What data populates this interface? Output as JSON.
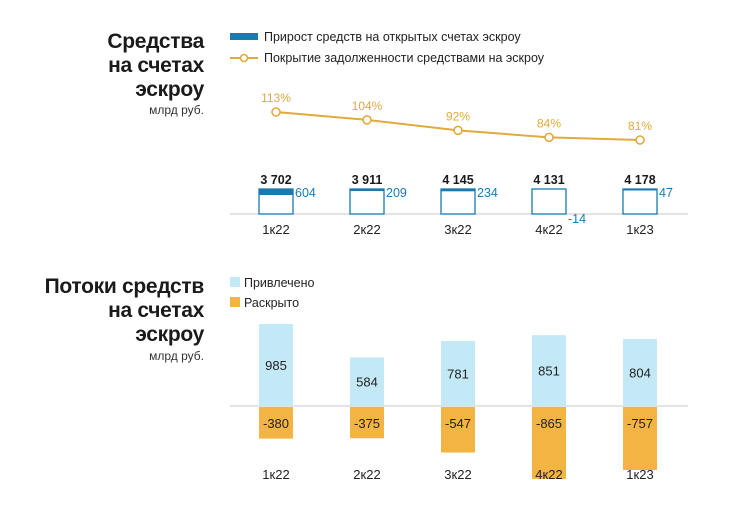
{
  "top": {
    "title_lines": [
      "Средства",
      "на счетах",
      "эскроу"
    ],
    "unit": "млрд руб.",
    "legend": {
      "increase": "Прирост средств на открытых счетах эскроу",
      "coverage": "Покрытие задолженности средствами на эскроу"
    }
  },
  "bottom": {
    "title_lines": [
      "Потоки средств",
      "на счетах",
      "эскроу"
    ],
    "unit": "млрд руб.",
    "legend": {
      "attracted": "Привлечено",
      "disclosed": "Раскрыто"
    }
  },
  "colors": {
    "increase": "#1a7ab0",
    "coverage": "#e2a93b",
    "attracted": "#c3e9f7",
    "disclosed": "#f2b443"
  },
  "chart_data": [
    {
      "type": "bar",
      "categories": [
        "1к22",
        "2к22",
        "3к22",
        "4к22",
        "1к23"
      ],
      "series": [
        {
          "name": "Прирост средств на открытых счетах эскроу",
          "values": [
            604,
            209,
            234,
            -14,
            47
          ]
        }
      ],
      "totals": [
        3702,
        3911,
        4145,
        4131,
        4178
      ],
      "totals_labels": [
        "3 702",
        "3 911",
        "4 145",
        "4 131",
        "4 178"
      ],
      "increase_labels": [
        "604",
        "209",
        "234",
        "-14",
        "47"
      ]
    },
    {
      "type": "line",
      "categories": [
        "1к22",
        "2к22",
        "3к22",
        "4к22",
        "1к23"
      ],
      "series": [
        {
          "name": "Покрытие задолженности средствами на эскроу",
          "values": [
            113,
            104,
            92,
            84,
            81
          ]
        }
      ],
      "labels": [
        "113%",
        "104%",
        "92%",
        "84%",
        "81%"
      ]
    },
    {
      "type": "bar",
      "categories": [
        "1к22",
        "2к22",
        "3к22",
        "4к22",
        "1к23"
      ],
      "series": [
        {
          "name": "Привлечено",
          "values": [
            985,
            584,
            781,
            851,
            804
          ]
        },
        {
          "name": "Раскрыто",
          "values": [
            -380,
            -375,
            -547,
            -865,
            -757
          ]
        }
      ],
      "labels_attracted": [
        "985",
        "584",
        "781",
        "851",
        "804"
      ],
      "labels_disclosed": [
        "-380",
        "-375",
        "-547",
        "-865",
        "-757"
      ]
    }
  ]
}
